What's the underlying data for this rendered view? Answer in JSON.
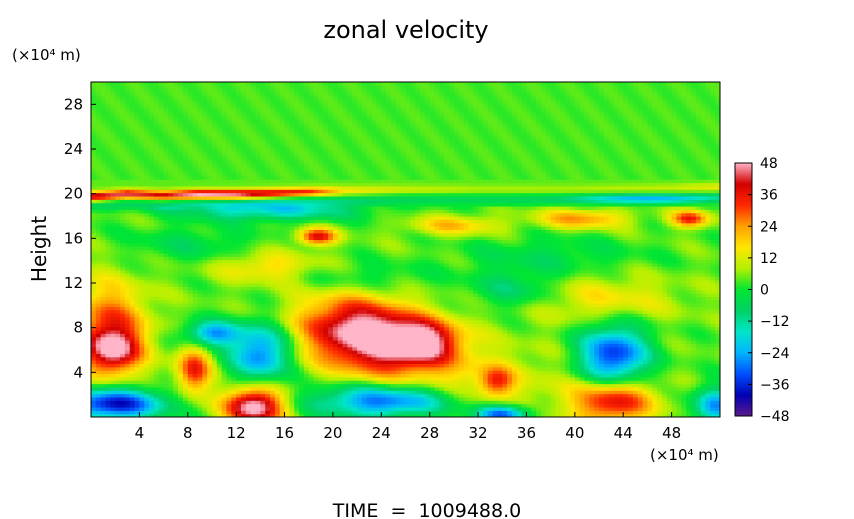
{
  "chart_data": {
    "type": "heatmap",
    "title": "zonal velocity",
    "ylabel": "Height",
    "y_unit_label": "(×10⁴ m)",
    "x_unit_label": "(×10⁴ m)",
    "footer": "TIME  =  1009488.0",
    "xlim": [
      0,
      52
    ],
    "ylim": [
      0,
      30
    ],
    "x_ticks": [
      4,
      8,
      12,
      16,
      20,
      24,
      28,
      32,
      36,
      40,
      44,
      48
    ],
    "y_ticks": [
      4,
      8,
      12,
      16,
      20,
      24,
      28
    ],
    "colorbar": {
      "range": [
        -48,
        48
      ],
      "ticks": [
        48,
        36,
        24,
        12,
        0,
        -12,
        -24,
        -36,
        -48
      ],
      "tick_labels": [
        "48",
        "36",
        "24",
        "12",
        "0",
        "−12",
        "−24",
        "−36",
        "−48"
      ],
      "stops": [
        "#5a1a8c",
        "#0000b4",
        "#0050ff",
        "#00b4ff",
        "#00e6c8",
        "#00d264",
        "#00e632",
        "#b4f000",
        "#ffe600",
        "#ffa000",
        "#ff2800",
        "#d20000",
        "#ffb4c8"
      ]
    },
    "background_value": 4,
    "features": [
      {
        "x": 22.5,
        "y": 7.5,
        "sx": 3.5,
        "sy": 2.2,
        "v": 50,
        "rot": -10
      },
      {
        "x": 27.5,
        "y": 6.8,
        "sx": 2.2,
        "sy": 1.4,
        "v": 36,
        "rot": 0
      },
      {
        "x": 1.5,
        "y": 8.2,
        "sx": 2.2,
        "sy": 2.8,
        "v": 26,
        "rot": 0
      },
      {
        "x": 1.8,
        "y": 6.0,
        "sx": 1.6,
        "sy": 1.4,
        "v": 32,
        "rot": 0
      },
      {
        "x": 8.5,
        "y": 4.2,
        "sx": 1.0,
        "sy": 1.5,
        "v": 30,
        "rot": 0
      },
      {
        "x": 13.5,
        "y": 1.0,
        "sx": 1.7,
        "sy": 1.2,
        "v": 50,
        "rot": 0
      },
      {
        "x": 43.2,
        "y": 1.5,
        "sx": 2.3,
        "sy": 1.4,
        "v": 36,
        "rot": 0
      },
      {
        "x": 33.5,
        "y": 3.2,
        "sx": 1.0,
        "sy": 0.9,
        "v": 22,
        "rot": 0
      },
      {
        "x": 18.7,
        "y": 16.2,
        "sx": 1.1,
        "sy": 0.5,
        "v": 34,
        "rot": 0
      },
      {
        "x": 40.5,
        "y": 17.8,
        "sx": 2.6,
        "sy": 0.6,
        "v": 20,
        "rot": 0
      },
      {
        "x": 49.5,
        "y": 17.8,
        "sx": 1.1,
        "sy": 0.5,
        "v": 30,
        "rot": 0
      },
      {
        "x": 30.0,
        "y": 17.2,
        "sx": 2.5,
        "sy": 0.6,
        "v": 16,
        "rot": 0
      },
      {
        "x": 14.5,
        "y": 13.5,
        "sx": 3.0,
        "sy": 1.0,
        "v": 14,
        "rot": 0
      },
      {
        "x": 42.5,
        "y": 10.5,
        "sx": 4.0,
        "sy": 1.5,
        "v": 12,
        "rot": 0
      },
      {
        "x": 30.0,
        "y": 3.0,
        "sx": 6.0,
        "sy": 2.5,
        "v": 12,
        "rot": 0
      },
      {
        "x": 10.0,
        "y": 7.5,
        "sx": 1.6,
        "sy": 0.8,
        "v": -30,
        "rot": 0
      },
      {
        "x": 14.0,
        "y": 5.8,
        "sx": 1.7,
        "sy": 1.8,
        "v": -34,
        "rot": 0
      },
      {
        "x": 43.2,
        "y": 5.5,
        "sx": 2.0,
        "sy": 2.0,
        "v": -40,
        "rot": 0
      },
      {
        "x": 1.8,
        "y": 1.2,
        "sx": 3.0,
        "sy": 1.0,
        "v": -44,
        "rot": 0
      },
      {
        "x": 24.5,
        "y": 1.5,
        "sx": 4.2,
        "sy": 1.1,
        "v": -40,
        "rot": 0
      },
      {
        "x": 34.0,
        "y": 0.3,
        "sx": 1.6,
        "sy": 0.6,
        "v": -38,
        "rot": 0
      },
      {
        "x": 51.5,
        "y": 1.0,
        "sx": 1.2,
        "sy": 1.2,
        "v": -30,
        "rot": 0
      },
      {
        "x": 35.0,
        "y": 11.5,
        "sx": 2.5,
        "sy": 1.2,
        "v": -12,
        "rot": 0
      },
      {
        "x": 22.0,
        "y": 12.5,
        "sx": 4.0,
        "sy": 1.0,
        "v": -8,
        "rot": 0
      },
      {
        "x": 8.5,
        "y": 15.5,
        "sx": 4.0,
        "sy": 1.2,
        "v": -8,
        "rot": 0
      },
      {
        "x": 38.0,
        "y": 14.5,
        "sx": 5.0,
        "sy": 1.2,
        "v": -8,
        "rot": 0
      },
      {
        "x": 15.0,
        "y": 18.5,
        "sx": 5.0,
        "sy": 0.6,
        "v": -22,
        "rot": 0
      },
      {
        "x": 46.0,
        "y": 19.6,
        "sx": 4.0,
        "sy": 0.3,
        "v": -18,
        "rot": 0
      }
    ],
    "jet_band": [
      {
        "x": 0,
        "y": 19.8,
        "v": 38
      },
      {
        "x": 3,
        "y": 20.0,
        "v": 40
      },
      {
        "x": 6,
        "y": 19.9,
        "v": 36
      },
      {
        "x": 9,
        "y": 20.0,
        "v": 46
      },
      {
        "x": 12,
        "y": 20.0,
        "v": 44
      },
      {
        "x": 15,
        "y": 20.1,
        "v": 36
      },
      {
        "x": 18,
        "y": 20.2,
        "v": 30
      },
      {
        "x": 21,
        "y": 20.3,
        "v": 12
      },
      {
        "x": 26,
        "y": 20.4,
        "v": 6
      },
      {
        "x": 32,
        "y": 20.4,
        "v": 4
      },
      {
        "x": 40,
        "y": 20.4,
        "v": 4
      },
      {
        "x": 48,
        "y": 20.5,
        "v": 6
      },
      {
        "x": 52,
        "y": 20.6,
        "v": 10
      }
    ]
  }
}
